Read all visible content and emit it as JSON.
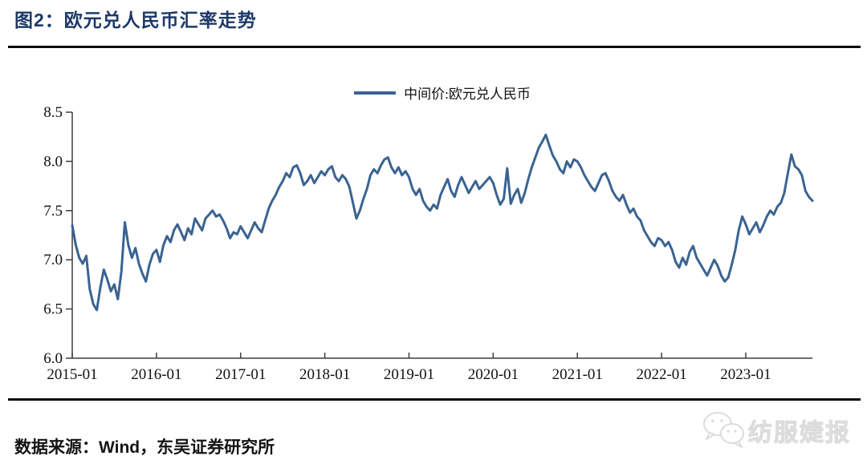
{
  "figure": {
    "title": "图2：欧元兑人民币汇率走势",
    "source": "数据来源：Wind，东吴证券研究所",
    "watermark": "纺服婕报"
  },
  "legend": {
    "label": "中间价:欧元兑人民币"
  },
  "colors": {
    "title": "#1E3A68",
    "line": "#3A6391",
    "axis": "#3d3d3d",
    "rule": "#0a0a0a",
    "watermark": "#dcdcdc"
  },
  "chart_data": {
    "type": "line",
    "title": "欧元兑人民币汇率走势",
    "xlabel": "",
    "ylabel": "",
    "ylim": [
      6.0,
      8.5
    ],
    "grid": false,
    "legend_position": "top-center",
    "x_start": "2015-01",
    "x_end": "2023-10",
    "points_per_month": 2,
    "x_tick_labels": [
      "2015-01",
      "2016-01",
      "2017-01",
      "2018-01",
      "2019-01",
      "2020-01",
      "2021-01",
      "2022-01",
      "2023-01"
    ],
    "y_tick_labels": [
      "6.0",
      "6.5",
      "7.0",
      "7.5",
      "8.0",
      "8.5"
    ],
    "series": [
      {
        "name": "中间价:欧元兑人民币",
        "values": [
          7.35,
          7.15,
          7.02,
          6.96,
          7.04,
          6.7,
          6.55,
          6.49,
          6.72,
          6.9,
          6.8,
          6.68,
          6.75,
          6.6,
          6.88,
          7.38,
          7.15,
          7.02,
          7.12,
          6.96,
          6.86,
          6.78,
          6.95,
          7.06,
          7.1,
          6.98,
          7.15,
          7.24,
          7.18,
          7.3,
          7.36,
          7.28,
          7.2,
          7.32,
          7.26,
          7.42,
          7.36,
          7.3,
          7.42,
          7.46,
          7.5,
          7.44,
          7.46,
          7.4,
          7.32,
          7.22,
          7.28,
          7.26,
          7.34,
          7.28,
          7.22,
          7.3,
          7.38,
          7.32,
          7.28,
          7.4,
          7.52,
          7.6,
          7.66,
          7.74,
          7.8,
          7.88,
          7.84,
          7.94,
          7.96,
          7.88,
          7.76,
          7.8,
          7.86,
          7.78,
          7.84,
          7.9,
          7.86,
          7.92,
          7.95,
          7.84,
          7.8,
          7.86,
          7.82,
          7.74,
          7.58,
          7.42,
          7.5,
          7.62,
          7.72,
          7.86,
          7.92,
          7.88,
          7.96,
          8.02,
          8.04,
          7.94,
          7.88,
          7.94,
          7.86,
          7.9,
          7.84,
          7.72,
          7.66,
          7.72,
          7.6,
          7.54,
          7.5,
          7.56,
          7.52,
          7.66,
          7.74,
          7.82,
          7.7,
          7.64,
          7.76,
          7.84,
          7.76,
          7.68,
          7.74,
          7.8,
          7.72,
          7.76,
          7.8,
          7.84,
          7.78,
          7.66,
          7.56,
          7.62,
          7.93,
          7.57,
          7.66,
          7.72,
          7.58,
          7.68,
          7.82,
          7.94,
          8.04,
          8.14,
          8.2,
          8.27,
          8.16,
          8.06,
          8.0,
          7.92,
          7.88,
          8.0,
          7.94,
          8.02,
          8.0,
          7.94,
          7.86,
          7.8,
          7.74,
          7.7,
          7.78,
          7.86,
          7.88,
          7.8,
          7.7,
          7.64,
          7.6,
          7.66,
          7.56,
          7.48,
          7.52,
          7.44,
          7.4,
          7.3,
          7.24,
          7.18,
          7.14,
          7.22,
          7.2,
          7.14,
          7.18,
          7.1,
          6.98,
          6.92,
          7.02,
          6.95,
          7.08,
          7.14,
          7.02,
          6.96,
          6.9,
          6.84,
          6.92,
          7.0,
          6.94,
          6.84,
          6.78,
          6.82,
          6.95,
          7.1,
          7.3,
          7.44,
          7.36,
          7.26,
          7.32,
          7.38,
          7.28,
          7.35,
          7.44,
          7.5,
          7.46,
          7.54,
          7.58,
          7.68,
          7.88,
          8.07,
          7.95,
          7.92,
          7.86,
          7.7,
          7.64,
          7.6
        ]
      }
    ]
  }
}
